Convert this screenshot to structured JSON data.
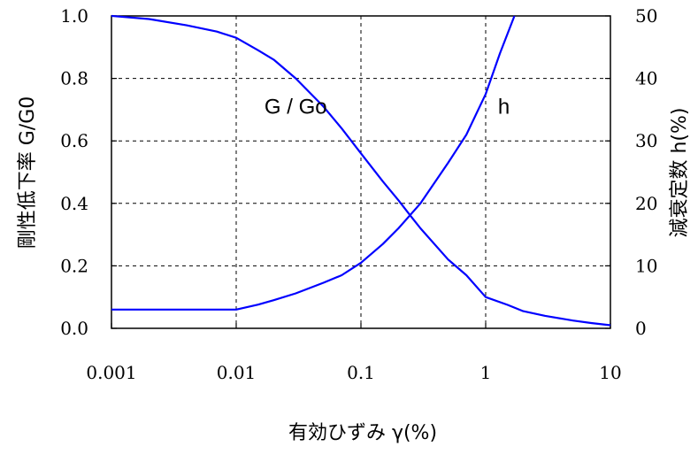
{
  "chart_data": {
    "type": "line",
    "x_scale": "log",
    "xlim": [
      0.001,
      10
    ],
    "ylim": [
      0,
      1.0
    ],
    "y2lim": [
      0,
      50
    ],
    "grid": true,
    "xlabel": "有効ひずみ γ(%)",
    "ylabel": "剛性低下率 G/G0",
    "y2label": "減衰定数 h(%)",
    "x_ticks": [
      "0.001",
      "0.01",
      "0.1",
      "1",
      "10"
    ],
    "y_ticks": [
      "0.0",
      "0.2",
      "0.4",
      "0.6",
      "0.8",
      "1.0"
    ],
    "y2_ticks": [
      "0",
      "10",
      "20",
      "30",
      "40",
      "50"
    ],
    "series": [
      {
        "name": "G / Go",
        "axis": "left",
        "color": "#0000ff",
        "x": [
          0.001,
          0.002,
          0.004,
          0.007,
          0.01,
          0.015,
          0.02,
          0.03,
          0.05,
          0.07,
          0.1,
          0.15,
          0.2,
          0.25,
          0.3,
          0.5,
          0.7,
          1,
          1.5,
          2,
          3,
          5,
          7,
          10
        ],
        "y": [
          1.0,
          0.99,
          0.97,
          0.95,
          0.93,
          0.89,
          0.86,
          0.8,
          0.71,
          0.64,
          0.56,
          0.47,
          0.41,
          0.36,
          0.32,
          0.22,
          0.17,
          0.1,
          0.075,
          0.055,
          0.04,
          0.025,
          0.017,
          0.01
        ]
      },
      {
        "name": "h",
        "axis": "right",
        "color": "#0000ff",
        "x": [
          0.001,
          0.003,
          0.007,
          0.01,
          0.015,
          0.02,
          0.03,
          0.05,
          0.07,
          0.1,
          0.15,
          0.2,
          0.3,
          0.5,
          0.7,
          1,
          1.3,
          1.7
        ],
        "y": [
          3,
          3,
          3,
          3,
          3.8,
          4.5,
          5.6,
          7.3,
          8.5,
          10.5,
          13.5,
          16,
          20,
          26.5,
          31,
          37.5,
          44,
          50
        ]
      }
    ],
    "annotations": [
      {
        "text": "G / Go",
        "x": 0.03,
        "y": 0.71
      },
      {
        "text": "h",
        "x": 1.4,
        "y": 0.71
      }
    ]
  }
}
